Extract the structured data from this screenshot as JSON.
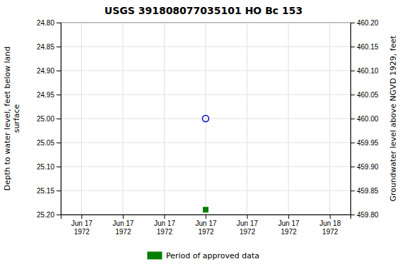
{
  "chart_data": {
    "type": "scatter",
    "title": "USGS 391808077035101 HO Bc 153",
    "y_label": "Depth to water level, feet below land\n surface",
    "y2_label": "Groundwater level above NGVD 1929, feet",
    "categories": [
      "Jun 17\n1972",
      "Jun 17\n1972",
      "Jun 17\n1972",
      "Jun 17\n1972",
      "Jun 17\n1972",
      "Jun 17\n1972",
      "Jun 18\n1972"
    ],
    "series": [
      {
        "color": "#0000cc",
        "marker": "open-circle",
        "values": [
          null,
          null,
          null,
          25.0,
          null,
          null,
          null
        ]
      },
      {
        "name": "Period of approved data",
        "color": "#008000",
        "marker": "square",
        "values": [
          null,
          null,
          null,
          25.19,
          null,
          null,
          null
        ]
      }
    ],
    "ylim": [
      25.2,
      24.8
    ],
    "yticks": [
      {
        "value": 24.8,
        "label": "24.80"
      },
      {
        "value": 24.85,
        "label": "24.85"
      },
      {
        "value": 24.9,
        "label": "24.90"
      },
      {
        "value": 24.95,
        "label": "24.95"
      },
      {
        "value": 25.0,
        "label": "25.00"
      },
      {
        "value": 25.05,
        "label": "25.05"
      },
      {
        "value": 25.1,
        "label": "25.10"
      },
      {
        "value": 25.15,
        "label": "25.15"
      },
      {
        "value": 25.2,
        "label": "25.20"
      }
    ],
    "y2lim": [
      459.8,
      460.2
    ],
    "y2ticks": [
      {
        "value": 459.8,
        "label": "459.80"
      },
      {
        "value": 459.85,
        "label": "459.85"
      },
      {
        "value": 459.9,
        "label": "459.90"
      },
      {
        "value": 459.95,
        "label": "459.95"
      },
      {
        "value": 460.0,
        "label": "460.00"
      },
      {
        "value": 460.05,
        "label": "460.05"
      },
      {
        "value": 460.1,
        "label": "460.10"
      },
      {
        "value": 460.15,
        "label": "460.15"
      },
      {
        "value": 460.2,
        "label": "460.20"
      }
    ],
    "grid": true,
    "legend": "bottom"
  }
}
